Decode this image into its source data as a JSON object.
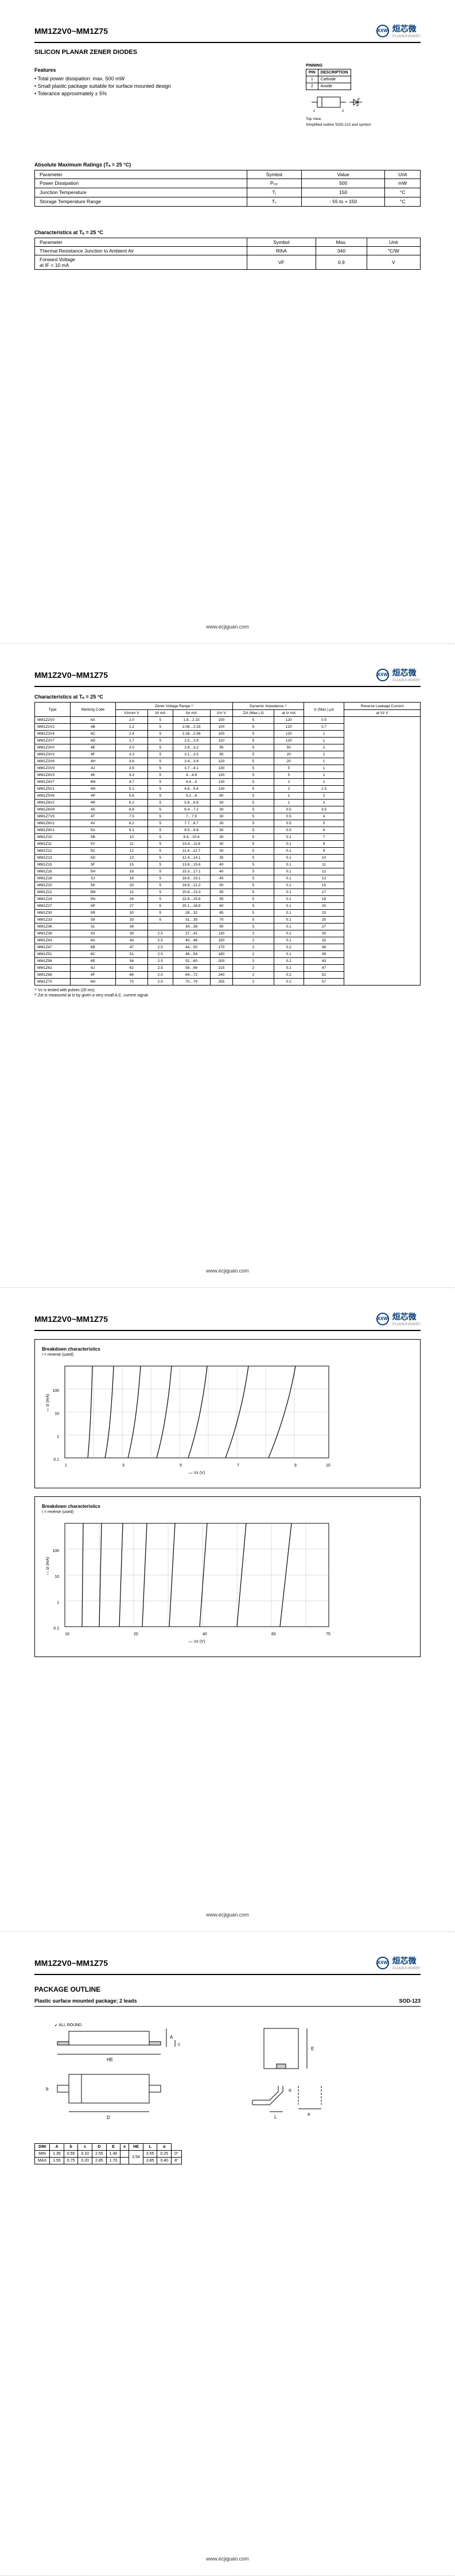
{
  "logo": {
    "text": "烜芯微",
    "sub": "XUANXINWEI"
  },
  "partRange": "MM1Z2V0~MM1Z75",
  "doc_subtitle": "SILICON PLANAR ZENER DIODES",
  "features_head": "Features",
  "features": [
    "Total power dissipation: max. 500 mW",
    "Small plastic package suitable for surface mounted design",
    "Tolerance approximately ± 5%"
  ],
  "pinning_head": "PINNING",
  "pinning_cols": [
    "PIN",
    "DESCRIPTION"
  ],
  "pinning_rows": [
    [
      "1",
      "Cathode"
    ],
    [
      "2",
      "Anode"
    ]
  ],
  "pinning_caption1": "Top View",
  "pinning_caption2": "Simplified outline SOD-123 and symbol",
  "abs_max_head": "Absolute Maximum Ratings (Tₐ = 25 °C)",
  "abs_max_cols": [
    "Parameter",
    "Symbol",
    "Value",
    "Unit"
  ],
  "abs_max_rows": [
    [
      "Power Dissipation",
      "Pₜₒₜ",
      "500",
      "mW"
    ],
    [
      "Junction Temperature",
      "Tⱼ",
      "150",
      "°C"
    ],
    [
      "Storage Temperature Range",
      "Tₛ",
      "- 55 to + 150",
      "°C"
    ]
  ],
  "char_head": "Characteristics at Tₐ = 25 °C",
  "char_cols": [
    "Parameter",
    "Symbol",
    "Max.",
    "Unit"
  ],
  "char_rows": [
    [
      "Thermal Resistance Junction to Ambient Air",
      "RthA",
      "340",
      "°C/W"
    ],
    [
      "Forward Voltage\nat IF = 10 mA",
      "VF",
      "0.9",
      "V"
    ]
  ],
  "footer": "www.ecjiguan.com",
  "p2_table_head": "Characteristics at Tₐ = 25 °C",
  "p2_groups": [
    {
      "label": "",
      "cols": [
        "Type",
        "Marking Code"
      ]
    },
    {
      "label": "Zener Voltage Range ¹⁾",
      "cols": [
        "Vznom V",
        "Izt mA",
        "for mA",
        "Vzr V"
      ]
    },
    {
      "label": "Dynamic Impedance ¹⁾",
      "cols": [
        "Zzt (Max.) Ω",
        "at Iz mA"
      ]
    },
    {
      "label": "",
      "cols": [
        "Iz (Max.) μA"
      ]
    },
    {
      "label": "Reverse Leakage Current",
      "cols": [
        "at Vz V"
      ]
    }
  ],
  "p2_rows": [
    [
      "MM1Z2V0",
      "4A",
      "2.0",
      "5",
      "1.8…2.15",
      "100",
      "5",
      "120",
      "0.5"
    ],
    [
      "MM1Z2V2",
      "4B",
      "2.2",
      "5",
      "2.08…2.33",
      "100",
      "5",
      "120",
      "0.7"
    ],
    [
      "MM1Z2V4",
      "4C",
      "2.4",
      "5",
      "2.28…2.56",
      "100",
      "5",
      "120",
      "1"
    ],
    [
      "MM1Z2V7",
      "4D",
      "2.7",
      "5",
      "2.5…2.9",
      "110",
      "5",
      "120",
      "1"
    ],
    [
      "MM1Z3V0",
      "4E",
      "3.0",
      "5",
      "2.8…3.2",
      "95",
      "5",
      "50",
      "1"
    ],
    [
      "MM1Z3V3",
      "4F",
      "3.3",
      "5",
      "3.1…3.5",
      "95",
      "5",
      "20",
      "1"
    ],
    [
      "MM1Z3V6",
      "4H",
      "3.6",
      "5",
      "3.4…3.8",
      "120",
      "5",
      "20",
      "1"
    ],
    [
      "MM1Z3V9",
      "4J",
      "3.9",
      "5",
      "3.7…4.1",
      "130",
      "5",
      "5",
      "1"
    ],
    [
      "MM1Z4V3",
      "4K",
      "4.3",
      "5",
      "4…4.6",
      "130",
      "5",
      "5",
      "1"
    ],
    [
      "MM1Z4V7",
      "4M",
      "4.7",
      "5",
      "4.4…5",
      "130",
      "5",
      "2",
      "1"
    ],
    [
      "MM1Z5V1",
      "4N",
      "5.1",
      "5",
      "4.8…5.4",
      "130",
      "5",
      "2",
      "1.5"
    ],
    [
      "MM1Z5V6",
      "4P",
      "5.6",
      "5",
      "5.2…6",
      "80",
      "5",
      "1",
      "2"
    ],
    [
      "MM1Z6V2",
      "4R",
      "6.2",
      "5",
      "5.8…6.6",
      "50",
      "5",
      "1",
      "3"
    ],
    [
      "MM1Z6V8",
      "4S",
      "6.8",
      "5",
      "6.4…7.2",
      "30",
      "5",
      "0.5",
      "3.5"
    ],
    [
      "MM1Z7V5",
      "4T",
      "7.5",
      "5",
      "7…7.9",
      "30",
      "5",
      "0.5",
      "4"
    ],
    [
      "MM1Z8V2",
      "4V",
      "8.2",
      "5",
      "7.7…8.7",
      "30",
      "5",
      "0.5",
      "5"
    ],
    [
      "MM1Z9V1",
      "5A",
      "9.1",
      "5",
      "8.5…9.6",
      "30",
      "5",
      "0.5",
      "6"
    ],
    [
      "MM1Z10",
      "5B",
      "10",
      "5",
      "9.4…10.6",
      "30",
      "5",
      "0.1",
      "7"
    ],
    [
      "MM1Z11",
      "5Y",
      "11",
      "5",
      "10.4…11.6",
      "30",
      "5",
      "0.1",
      "8"
    ],
    [
      "MM1Z12",
      "5C",
      "12",
      "5",
      "11.4…12.7",
      "30",
      "5",
      "0.1",
      "9"
    ],
    [
      "MM1Z13",
      "5D",
      "13",
      "5",
      "12.4…14.1",
      "35",
      "5",
      "0.1",
      "10"
    ],
    [
      "MM1Z15",
      "5F",
      "15",
      "5",
      "13.8…15.6",
      "40",
      "5",
      "0.1",
      "11"
    ],
    [
      "MM1Z16",
      "5H",
      "16",
      "5",
      "15.3…17.1",
      "40",
      "5",
      "0.1",
      "12"
    ],
    [
      "MM1Z18",
      "5J",
      "18",
      "5",
      "16.8…19.1",
      "45",
      "5",
      "0.1",
      "13"
    ],
    [
      "MM1Z20",
      "5K",
      "20",
      "5",
      "18.8…21.2",
      "50",
      "5",
      "0.1",
      "15"
    ],
    [
      "MM1Z22",
      "5M",
      "22",
      "5",
      "20.8…23.3",
      "55",
      "5",
      "0.1",
      "17"
    ],
    [
      "MM1Z24",
      "5N",
      "24",
      "5",
      "22.8…25.6",
      "55",
      "5",
      "0.1",
      "18"
    ],
    [
      "MM1Z27",
      "5P",
      "27",
      "5",
      "25.1…28.9",
      "60",
      "5",
      "0.1",
      "20"
    ],
    [
      "MM1Z30",
      "5R",
      "30",
      "5",
      "28…32",
      "65",
      "5",
      "0.1",
      "23"
    ],
    [
      "MM1Z33",
      "59",
      "33",
      "5",
      "31…35",
      "70",
      "5",
      "0.1",
      "25"
    ],
    [
      "MM1Z36",
      "51",
      "36",
      "",
      "34…38",
      "90",
      "5",
      "0.1",
      "27"
    ],
    [
      "MM1Z39",
      "63",
      "39",
      "2.5",
      "37…41",
      "130",
      "2",
      "0.1",
      "30"
    ],
    [
      "MM1Z43",
      "6A",
      "43",
      "2.5",
      "40…46",
      "150",
      "2",
      "0.1",
      "33"
    ],
    [
      "MM1Z47",
      "6B",
      "47",
      "2.5",
      "44…50",
      "170",
      "2",
      "0.2",
      "36"
    ],
    [
      "MM1Z51",
      "6C",
      "51",
      "2.5",
      "48…54",
      "180",
      "2",
      "0.1",
      "39"
    ],
    [
      "MM1Z56",
      "6E",
      "56",
      "2.5",
      "52…60",
      "200",
      "2",
      "0.2",
      "43"
    ],
    [
      "MM1Z62",
      "6J",
      "62",
      "2.5",
      "58…66",
      "215",
      "2",
      "0.2",
      "47"
    ],
    [
      "MM1Z68",
      "6F",
      "68",
      "2.5",
      "64…72",
      "240",
      "2",
      "0.2",
      "52"
    ],
    [
      "MM1Z75",
      "6H",
      "75",
      "2.5",
      "70…79",
      "255",
      "2",
      "0.2",
      "57"
    ]
  ],
  "notes": [
    "¹⁾ Vz is tested with pulses (20 ms).",
    "²⁾ Zzt is measured at Iz by given a very small A.C. current signal."
  ],
  "p3_chart1_title": "Breakdown characteristics",
  "p3_chart1_sub": "I = reverse (used)",
  "p3_chart2_title": "Breakdown characteristics",
  "p3_chart2_sub": "I = reverse (used)",
  "pkg_head": "PACKAGE OUTLINE",
  "pkg_sub": "Plastic surface mounted package; 2 leads",
  "pkg_code": "SOD-123",
  "dims_cols": [
    "DIM",
    "A",
    "b",
    "c",
    "D",
    "E",
    "e",
    "HE",
    "L",
    "α"
  ],
  "dims_rows": [
    [
      "MIN",
      "1.35",
      "0.55",
      "0.10",
      "2.55",
      "1.40",
      "",
      "3.55",
      "0.25",
      "0°"
    ],
    [
      "MAX",
      "1.55",
      "0.75",
      "0.20",
      "2.85",
      "1.70",
      "",
      "3.85",
      "0.40",
      "8°"
    ]
  ],
  "dim_nom_e": "2.54"
}
